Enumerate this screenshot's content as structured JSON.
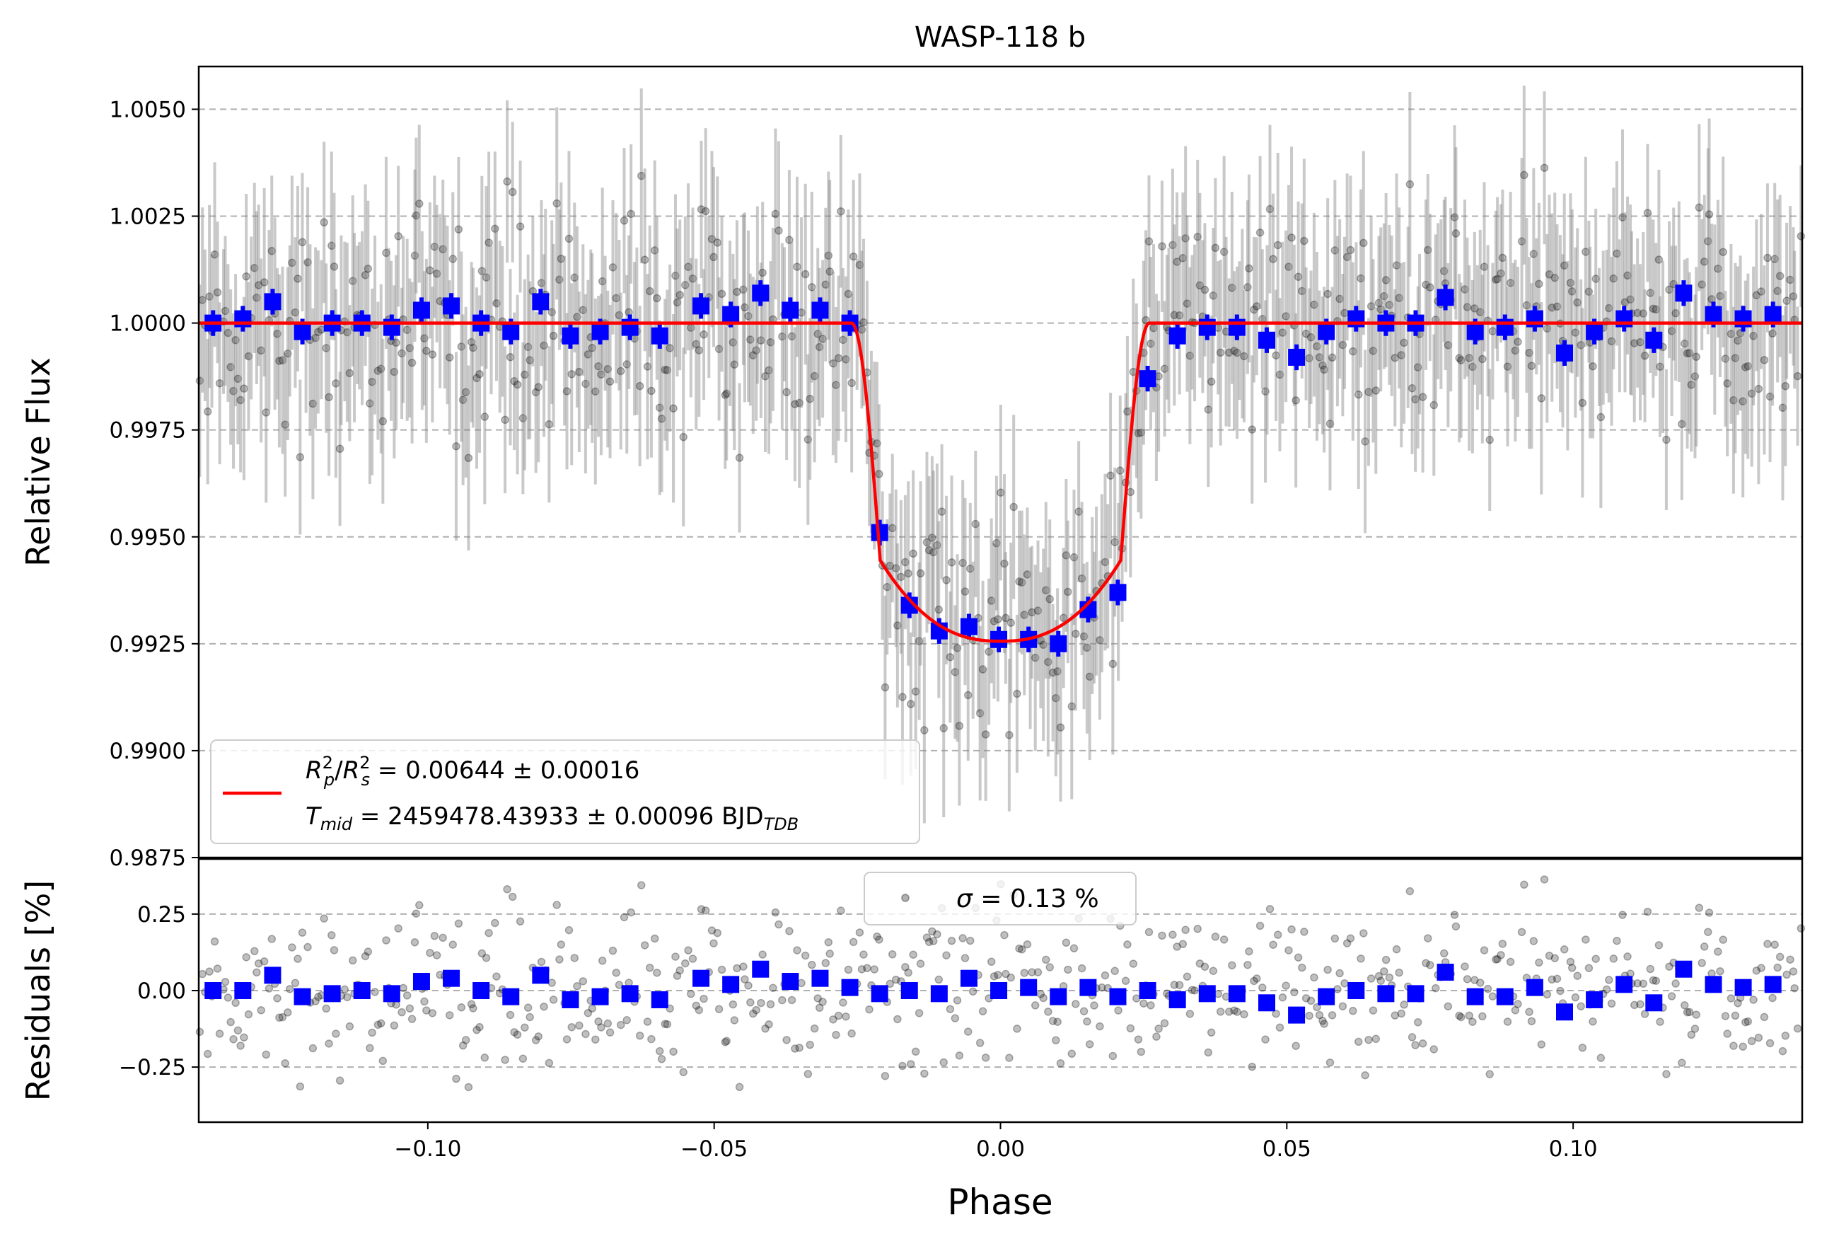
{
  "chart_data": [
    {
      "panel": "main",
      "type": "scatter",
      "title": "WASP-118 b",
      "xlabel": "",
      "ylabel": "Relative Flux",
      "xlim": [
        -0.14,
        0.14
      ],
      "ylim": [
        0.9875,
        1.006
      ],
      "yticks": [
        0.9875,
        0.99,
        0.9925,
        0.995,
        0.9975,
        1.0,
        1.0025,
        1.005
      ],
      "ytick_labels": [
        "0.9875",
        "0.9900",
        "0.9925",
        "0.9950",
        "0.9975",
        "1.0000",
        "1.0025",
        "1.0050"
      ],
      "grid": "horizontal dashed",
      "legend_position": "lower-left",
      "legend": {
        "label1_main": "R",
        "label1_sub_p": "p",
        "label1_sup": "2",
        "label1_slash": "/",
        "label1_main2": "R",
        "label1_sub_s": "s",
        "label1_sup2": "2",
        "label1_value": " = 0.00644 ± 0.00016",
        "label2_main": "T",
        "label2_sub": "mid",
        "label2_value": " = 2459478.43933 ± 0.00096 BJD",
        "label2_sub2": "TDB"
      },
      "model": {
        "name": "transit model",
        "color": "#ff0000",
        "depth": 0.00644,
        "baseline": 1.0,
        "t1": -0.026,
        "t2": -0.021,
        "t3": 0.021,
        "t4": 0.026,
        "center_flux": 0.99256,
        "contact_flux": 0.99445
      },
      "binned": {
        "name": "binned data",
        "color": "#0000ff",
        "x": [
          -0.1375,
          -0.1323,
          -0.1271,
          -0.1219,
          -0.1167,
          -0.1115,
          -0.1063,
          -0.1011,
          -0.0959,
          -0.0907,
          -0.0855,
          -0.0803,
          -0.0751,
          -0.0699,
          -0.0647,
          -0.0595,
          -0.0523,
          -0.0471,
          -0.0419,
          -0.0367,
          -0.0315,
          -0.0263,
          -0.0211,
          -0.0159,
          -0.0107,
          -0.0055,
          -0.0003,
          0.0049,
          0.0101,
          0.0153,
          0.0205,
          0.0257,
          0.0309,
          0.0361,
          0.0413,
          0.0465,
          0.0517,
          0.0569,
          0.0621,
          0.0673,
          0.0725,
          0.0777,
          0.0829,
          0.0881,
          0.0933,
          0.0985,
          0.1037,
          0.1089,
          0.1141,
          0.1193,
          0.1245,
          0.1297,
          0.1349
        ],
        "y": [
          1.0,
          1.0001,
          1.0005,
          0.9998,
          1.0,
          1.0,
          0.9999,
          1.0003,
          1.0004,
          1.0,
          0.9998,
          1.0005,
          0.9997,
          0.9998,
          0.9999,
          0.9997,
          1.0004,
          1.0002,
          1.0007,
          1.0003,
          1.0003,
          1.0,
          0.9951,
          0.9934,
          0.9928,
          0.9929,
          0.9926,
          0.9926,
          0.9925,
          0.9933,
          0.9937,
          0.9987,
          0.9997,
          0.9999,
          0.9999,
          0.9996,
          0.9992,
          0.9998,
          1.0001,
          1.0,
          1.0,
          1.0006,
          0.9998,
          0.9999,
          1.0001,
          0.9993,
          0.9998,
          1.0001,
          0.9996,
          1.0007,
          1.0002,
          1.0001,
          1.0002
        ],
        "yerr": 0.0003
      },
      "raw": {
        "name": "unbinned data",
        "color": "#000000",
        "n_points": 620,
        "scatter_sigma": 0.0013,
        "errorbar": 0.0018
      }
    },
    {
      "panel": "residuals",
      "type": "scatter",
      "xlabel": "Phase",
      "ylabel": "Residuals [%]",
      "xlim": [
        -0.14,
        0.14
      ],
      "ylim": [
        -0.43,
        0.43
      ],
      "xticks": [
        -0.1,
        -0.05,
        0.0,
        0.05,
        0.1
      ],
      "xtick_labels": [
        "−0.10",
        "−0.05",
        "0.00",
        "0.05",
        "0.10"
      ],
      "yticks": [
        -0.25,
        0.0,
        0.25
      ],
      "ytick_labels": [
        "−0.25",
        "0.00",
        "0.25"
      ],
      "grid": "horizontal dashed",
      "legend_position": "top-center",
      "legend": {
        "sigma_symbol": "σ",
        "sigma_text": " = 0.13 %"
      },
      "binned_residuals": {
        "color": "#0000ff",
        "y": [
          0.0,
          0.0,
          0.05,
          -0.02,
          -0.01,
          0.0,
          -0.01,
          0.03,
          0.04,
          0.0,
          -0.02,
          0.05,
          -0.03,
          -0.02,
          -0.01,
          -0.03,
          0.04,
          0.02,
          0.07,
          0.03,
          0.04,
          0.01,
          -0.01,
          0.0,
          -0.01,
          0.04,
          0.0,
          0.01,
          -0.02,
          0.01,
          -0.02,
          0.0,
          -0.03,
          -0.01,
          -0.01,
          -0.04,
          -0.08,
          -0.02,
          0.0,
          -0.01,
          -0.01,
          0.06,
          -0.02,
          -0.02,
          0.01,
          -0.07,
          -0.03,
          0.02,
          -0.04,
          0.07,
          0.02,
          0.01,
          0.02
        ]
      }
    }
  ]
}
